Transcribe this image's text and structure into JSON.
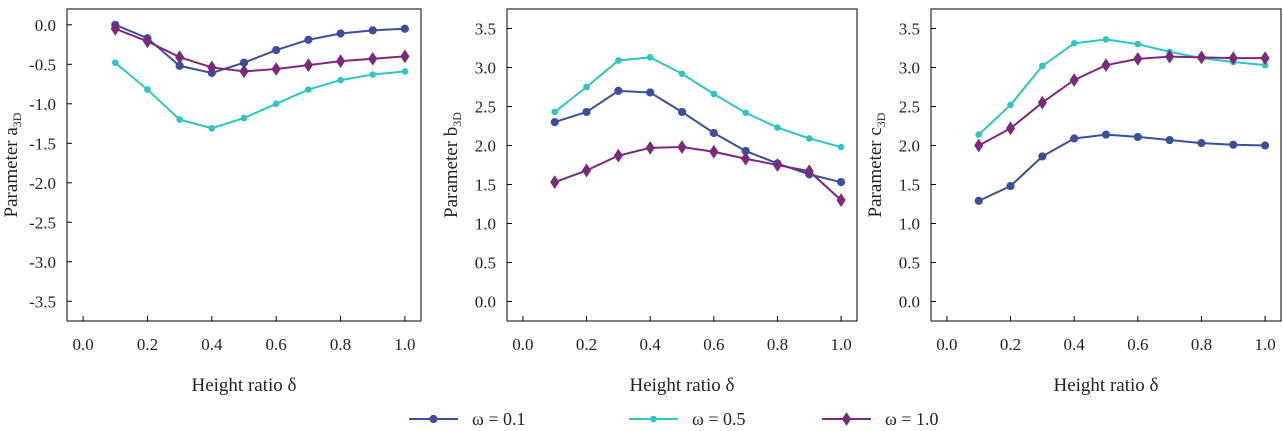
{
  "chart_data": [
    {
      "type": "line",
      "xlabel": "Height ratio δ",
      "ylabel": "Parameter a",
      "ylabel_sub": "3D",
      "xlim": [
        -0.05,
        1.05
      ],
      "ylim": [
        -3.75,
        0.2
      ],
      "xticks": [
        "0.0",
        "0.2",
        "0.4",
        "0.6",
        "0.8",
        "1.0"
      ],
      "yticks": [
        "0.0",
        "-0.5",
        "-1.0",
        "-1.5",
        "-2.0",
        "-2.5",
        "-3.0",
        "-3.5"
      ],
      "x": [
        0.1,
        0.2,
        0.3,
        0.4,
        0.5,
        0.6,
        0.7,
        0.8,
        0.9,
        1.0
      ],
      "series": [
        {
          "name": "ω = 0.1",
          "values": [
            0.0,
            -0.17,
            -0.52,
            -0.61,
            -0.48,
            -0.32,
            -0.19,
            -0.11,
            -0.07,
            -0.05
          ]
        },
        {
          "name": "ω = 0.5",
          "values": [
            -0.48,
            -0.82,
            -1.2,
            -1.31,
            -1.18,
            -1.0,
            -0.82,
            -0.7,
            -0.63,
            -0.59
          ]
        },
        {
          "name": "ω = 1.0",
          "values": [
            -0.05,
            -0.21,
            -0.41,
            -0.54,
            -0.59,
            -0.56,
            -0.51,
            -0.46,
            -0.43,
            -0.4
          ]
        }
      ]
    },
    {
      "type": "line",
      "xlabel": "Height ratio δ",
      "ylabel": "Parameter b",
      "ylabel_sub": "3D",
      "xlim": [
        -0.05,
        1.05
      ],
      "ylim": [
        -0.25,
        3.75
      ],
      "xticks": [
        "0.0",
        "0.2",
        "0.4",
        "0.6",
        "0.8",
        "1.0"
      ],
      "yticks": [
        "0.0",
        "0.5",
        "1.0",
        "1.5",
        "2.0",
        "2.5",
        "3.0",
        "3.5"
      ],
      "x": [
        0.1,
        0.2,
        0.3,
        0.4,
        0.5,
        0.6,
        0.7,
        0.8,
        0.9,
        1.0
      ],
      "series": [
        {
          "name": "ω = 0.1",
          "values": [
            2.3,
            2.43,
            2.7,
            2.68,
            2.43,
            2.16,
            1.93,
            1.77,
            1.63,
            1.53
          ]
        },
        {
          "name": "ω = 0.5",
          "values": [
            2.43,
            2.75,
            3.09,
            3.13,
            2.92,
            2.66,
            2.42,
            2.23,
            2.09,
            1.98
          ]
        },
        {
          "name": "ω = 1.0",
          "values": [
            1.53,
            1.68,
            1.87,
            1.97,
            1.98,
            1.92,
            1.83,
            1.75,
            1.67,
            1.3
          ]
        }
      ]
    },
    {
      "type": "line",
      "xlabel": "Height ratio δ",
      "ylabel": "Parameter c",
      "ylabel_sub": "3D",
      "xlim": [
        -0.05,
        1.05
      ],
      "ylim": [
        -0.25,
        3.75
      ],
      "xticks": [
        "0.0",
        "0.2",
        "0.4",
        "0.6",
        "0.8",
        "1.0"
      ],
      "yticks": [
        "0.0",
        "0.5",
        "1.0",
        "1.5",
        "2.0",
        "2.5",
        "3.0",
        "3.5"
      ],
      "x": [
        0.1,
        0.2,
        0.3,
        0.4,
        0.5,
        0.6,
        0.7,
        0.8,
        0.9,
        1.0
      ],
      "series": [
        {
          "name": "ω = 0.1",
          "values": [
            1.29,
            1.48,
            1.86,
            2.09,
            2.14,
            2.11,
            2.07,
            2.03,
            2.01,
            2.0
          ]
        },
        {
          "name": "ω = 0.5",
          "values": [
            2.14,
            2.52,
            3.02,
            3.31,
            3.36,
            3.3,
            3.2,
            3.12,
            3.07,
            3.03
          ]
        },
        {
          "name": "ω = 1.0",
          "values": [
            2.0,
            2.22,
            2.55,
            2.84,
            3.03,
            3.11,
            3.14,
            3.13,
            3.12,
            3.12
          ]
        }
      ]
    }
  ],
  "legend": {
    "placement": "bottom-center",
    "items": [
      {
        "label": "ω = 0.1",
        "color": "#3a4f9a",
        "marker": "circle"
      },
      {
        "label": "ω = 0.5",
        "color": "#2ec4c4",
        "marker": "small-circle"
      },
      {
        "label": "ω = 1.0",
        "color": "#7b2a7b",
        "marker": "diamond"
      }
    ]
  },
  "grid": false
}
